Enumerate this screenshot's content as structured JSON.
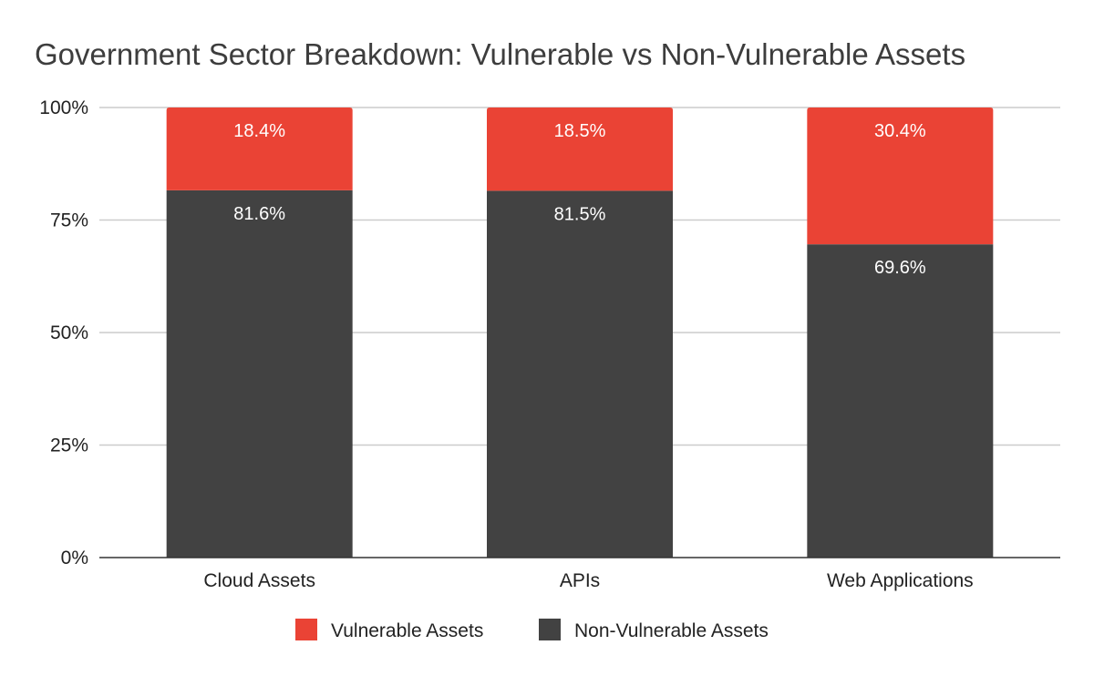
{
  "chart_data": {
    "type": "bar",
    "stacked": true,
    "normalized": true,
    "title": "Government Sector Breakdown: Vulnerable vs Non-Vulnerable Assets",
    "xlabel": "",
    "ylabel": "",
    "categories": [
      "Cloud Assets",
      "APIs",
      "Web Applications"
    ],
    "series": [
      {
        "name": "Non-Vulnerable Assets",
        "values": [
          81.6,
          81.5,
          69.6
        ],
        "labels": [
          "81.6%",
          "81.5%",
          "69.6%"
        ],
        "color": "#424242"
      },
      {
        "name": "Vulnerable Assets",
        "values": [
          18.4,
          18.5,
          30.4
        ],
        "labels": [
          "18.4%",
          "18.5%",
          "30.4%"
        ],
        "color": "#ea4335"
      }
    ],
    "yticks": [
      0,
      25,
      50,
      75,
      100
    ],
    "ytick_labels": [
      "0%",
      "25%",
      "50%",
      "75%",
      "100%"
    ],
    "ylim": [
      0,
      100
    ],
    "grid": true,
    "legend": {
      "placement": "bottom",
      "order": [
        "Vulnerable Assets",
        "Non-Vulnerable Assets"
      ]
    }
  }
}
